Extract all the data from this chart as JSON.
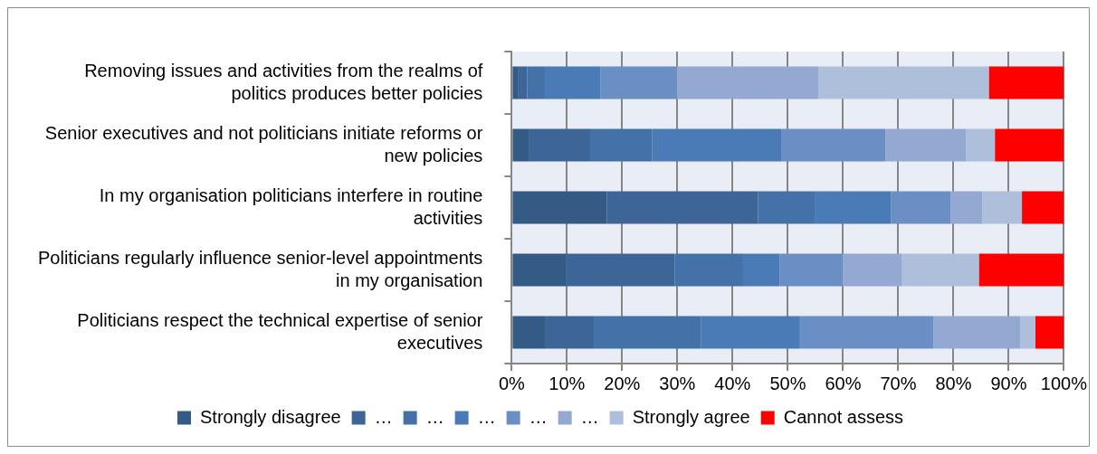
{
  "chart_data": {
    "type": "bar",
    "orientation": "horizontal",
    "stacked": true,
    "categories": [
      "Removing issues and activities from the realms of politics produces better policies",
      "Senior executives and not politicians initiate reforms or new policies",
      "In my organisation politicians interfere in routine activities",
      "Politicians regularly influence senior-level appointments in my organisation",
      "Politicians respect the technical expertise of senior executives"
    ],
    "series": [
      {
        "name": "Strongly disagree",
        "color": "#345a86",
        "values": [
          1.1,
          3.2,
          17.2,
          9.8,
          6.0
        ]
      },
      {
        "name": "…",
        "color": "#3d6598",
        "values": [
          1.7,
          11.0,
          27.4,
          19.7,
          9.0
        ]
      },
      {
        "name": "…",
        "color": "#4472a8",
        "values": [
          3.2,
          11.2,
          10.4,
          12.4,
          19.3
        ]
      },
      {
        "name": "…",
        "color": "#4a7bb7",
        "values": [
          10.1,
          23.4,
          13.7,
          6.6,
          17.9
        ]
      },
      {
        "name": "…",
        "color": "#6a8fc4",
        "values": [
          13.8,
          18.9,
          10.8,
          11.4,
          24.2
        ]
      },
      {
        "name": "…",
        "color": "#94a9d1",
        "values": [
          25.7,
          14.6,
          5.7,
          10.8,
          15.7
        ]
      },
      {
        "name": "Strongly agree",
        "color": "#adbfdb",
        "values": [
          30.8,
          5.2,
          7.2,
          13.9,
          2.7
        ]
      },
      {
        "name": "Cannot assess",
        "color": "#ff0000",
        "values": [
          13.6,
          12.5,
          7.6,
          15.4,
          5.2
        ]
      }
    ],
    "xlim": [
      0,
      100
    ],
    "xticks": [
      {
        "value": 0,
        "label": "0%"
      },
      {
        "value": 10,
        "label": "10%"
      },
      {
        "value": 20,
        "label": "20%"
      },
      {
        "value": 30,
        "label": "30%"
      },
      {
        "value": 40,
        "label": "40%"
      },
      {
        "value": 50,
        "label": "50%"
      },
      {
        "value": 60,
        "label": "60%"
      },
      {
        "value": 70,
        "label": "70%"
      },
      {
        "value": 80,
        "label": "80%"
      },
      {
        "value": 90,
        "label": "90%"
      },
      {
        "value": 100,
        "label": "100%"
      }
    ],
    "grid": "x",
    "legend": "bottom"
  }
}
